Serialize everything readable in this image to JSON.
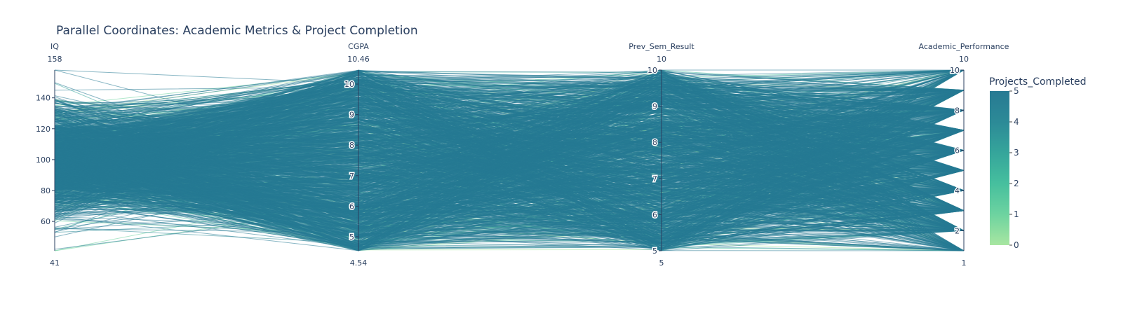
{
  "chart_data": {
    "type": "parallel_coordinates",
    "title": "Parallel Coordinates: Academic Metrics & Project Completion",
    "dimensions": [
      {
        "label": "IQ",
        "range": [
          41,
          158
        ],
        "range_min_label": "41",
        "range_max_label": "158",
        "ticks": [
          60,
          80,
          100,
          120,
          140
        ]
      },
      {
        "label": "CGPA",
        "range": [
          4.54,
          10.46
        ],
        "range_min_label": "4.54",
        "range_max_label": "10.46",
        "ticks": [
          5,
          6,
          7,
          8,
          9,
          10
        ]
      },
      {
        "label": "Prev_Sem_Result",
        "range": [
          5,
          10
        ],
        "range_min_label": "5",
        "range_max_label": "10",
        "ticks": [
          5,
          6,
          7,
          8,
          9,
          10
        ]
      },
      {
        "label": "Academic_Performance",
        "range": [
          1,
          10
        ],
        "range_min_label": "1",
        "range_max_label": "10",
        "ticks": [
          2,
          4,
          6,
          8,
          10
        ]
      }
    ],
    "color_variable": "Projects_Completed",
    "color_range": [
      0,
      5
    ],
    "colorscale": [
      "#a8e6a1",
      "#6dd3a0",
      "#46bf9e",
      "#35a59b",
      "#2c8a97",
      "#277a93"
    ],
    "colorbar_ticks": [
      0,
      1,
      2,
      3,
      4,
      5
    ],
    "dominant_value": 5
  }
}
